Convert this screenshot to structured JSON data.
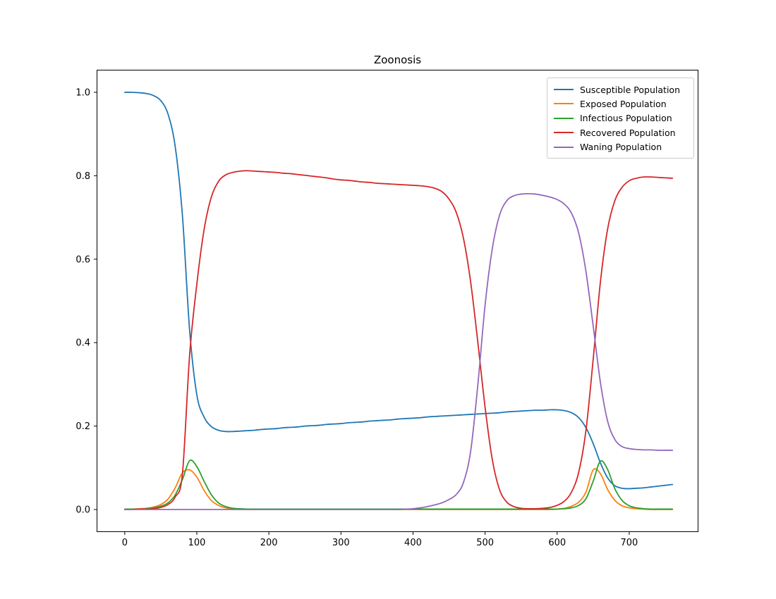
{
  "chart_data": {
    "type": "line",
    "title": "Zoonosis",
    "xlabel": "",
    "ylabel": "",
    "grid": false,
    "legend_position": "upper right",
    "xlim": [
      -39,
      796
    ],
    "ylim": [
      -0.054,
      1.054
    ],
    "x_ticks": [
      0,
      100,
      200,
      300,
      400,
      500,
      600,
      700
    ],
    "x_tick_labels": [
      "0",
      "100",
      "200",
      "300",
      "400",
      "500",
      "600",
      "700"
    ],
    "y_ticks": [
      0.0,
      0.2,
      0.4,
      0.6,
      0.8,
      1.0
    ],
    "y_tick_labels": [
      "0.0",
      "0.2",
      "0.4",
      "0.6",
      "0.8",
      "1.0"
    ],
    "x": [
      0,
      10,
      20,
      30,
      40,
      50,
      60,
      70,
      80,
      90,
      100,
      110,
      120,
      130,
      140,
      150,
      160,
      170,
      180,
      190,
      200,
      210,
      220,
      230,
      240,
      250,
      260,
      270,
      280,
      290,
      300,
      310,
      320,
      330,
      340,
      350,
      360,
      370,
      380,
      390,
      400,
      410,
      420,
      430,
      440,
      450,
      460,
      470,
      480,
      490,
      500,
      510,
      520,
      530,
      540,
      550,
      560,
      570,
      580,
      590,
      600,
      610,
      620,
      630,
      640,
      650,
      660,
      670,
      680,
      690,
      700,
      710,
      720,
      730,
      740,
      750,
      760
    ],
    "series": [
      {
        "name": "Susceptible Population",
        "color": "#1f77b4",
        "values": [
          1.0,
          1.0,
          0.999,
          0.997,
          0.992,
          0.98,
          0.948,
          0.87,
          0.705,
          0.43,
          0.275,
          0.222,
          0.199,
          0.19,
          0.187,
          0.187,
          0.188,
          0.189,
          0.19,
          0.192,
          0.193,
          0.194,
          0.196,
          0.197,
          0.198,
          0.2,
          0.201,
          0.202,
          0.204,
          0.205,
          0.206,
          0.208,
          0.209,
          0.21,
          0.212,
          0.213,
          0.214,
          0.215,
          0.217,
          0.218,
          0.219,
          0.22,
          0.222,
          0.223,
          0.224,
          0.225,
          0.226,
          0.227,
          0.228,
          0.229,
          0.23,
          0.231,
          0.232,
          0.234,
          0.235,
          0.236,
          0.237,
          0.238,
          0.238,
          0.239,
          0.239,
          0.237,
          0.232,
          0.22,
          0.196,
          0.158,
          0.112,
          0.076,
          0.057,
          0.051,
          0.05,
          0.051,
          0.052,
          0.054,
          0.056,
          0.058,
          0.06
        ]
      },
      {
        "name": "Exposed Population",
        "color": "#ff7f0e",
        "values": [
          0.001,
          0.001,
          0.002,
          0.003,
          0.006,
          0.012,
          0.025,
          0.052,
          0.088,
          0.095,
          0.078,
          0.046,
          0.022,
          0.01,
          0.004,
          0.002,
          0.001,
          0.0,
          0.0,
          0.0,
          0.0,
          0.0,
          0.0,
          0.0,
          0.0,
          0.0,
          0.0,
          0.0,
          0.0,
          0.0,
          0.0,
          0.0,
          0.0,
          0.0,
          0.0,
          0.0,
          0.0,
          0.0,
          0.0,
          0.0,
          0.0,
          0.0,
          0.0,
          0.0,
          0.0,
          0.0,
          0.0,
          0.0,
          0.0,
          0.0,
          0.0,
          0.0,
          0.0,
          0.0,
          0.0,
          0.0,
          0.0,
          0.0,
          0.0,
          0.0,
          0.001,
          0.003,
          0.008,
          0.018,
          0.042,
          0.095,
          0.086,
          0.048,
          0.022,
          0.009,
          0.004,
          0.002,
          0.001,
          0.0,
          0.0,
          0.0,
          0.0
        ]
      },
      {
        "name": "Infectious Population",
        "color": "#2ca02c",
        "values": [
          0.001,
          0.001,
          0.001,
          0.002,
          0.004,
          0.008,
          0.016,
          0.035,
          0.072,
          0.117,
          0.103,
          0.068,
          0.036,
          0.016,
          0.007,
          0.003,
          0.002,
          0.001,
          0.001,
          0.001,
          0.001,
          0.001,
          0.001,
          0.001,
          0.001,
          0.001,
          0.001,
          0.001,
          0.001,
          0.001,
          0.001,
          0.001,
          0.001,
          0.001,
          0.001,
          0.001,
          0.001,
          0.001,
          0.001,
          0.001,
          0.001,
          0.001,
          0.001,
          0.001,
          0.001,
          0.001,
          0.001,
          0.001,
          0.001,
          0.001,
          0.001,
          0.001,
          0.001,
          0.001,
          0.001,
          0.001,
          0.001,
          0.001,
          0.001,
          0.001,
          0.001,
          0.002,
          0.004,
          0.01,
          0.026,
          0.068,
          0.116,
          0.096,
          0.05,
          0.022,
          0.009,
          0.004,
          0.002,
          0.001,
          0.001,
          0.001,
          0.001
        ]
      },
      {
        "name": "Recovered Population",
        "color": "#d62728",
        "values": [
          0.0,
          0.0,
          0.001,
          0.001,
          0.002,
          0.005,
          0.012,
          0.03,
          0.085,
          0.37,
          0.54,
          0.67,
          0.748,
          0.786,
          0.802,
          0.808,
          0.811,
          0.812,
          0.811,
          0.81,
          0.809,
          0.808,
          0.806,
          0.805,
          0.803,
          0.801,
          0.799,
          0.797,
          0.795,
          0.792,
          0.79,
          0.789,
          0.787,
          0.785,
          0.784,
          0.782,
          0.781,
          0.78,
          0.779,
          0.778,
          0.777,
          0.776,
          0.774,
          0.77,
          0.762,
          0.744,
          0.712,
          0.65,
          0.545,
          0.4,
          0.245,
          0.12,
          0.048,
          0.018,
          0.007,
          0.003,
          0.002,
          0.002,
          0.003,
          0.005,
          0.01,
          0.02,
          0.042,
          0.09,
          0.19,
          0.36,
          0.545,
          0.672,
          0.74,
          0.772,
          0.788,
          0.794,
          0.797,
          0.797,
          0.796,
          0.795,
          0.794
        ]
      },
      {
        "name": "Waning Population",
        "color": "#9467bd",
        "values": [
          0.0,
          0.0,
          0.0,
          0.0,
          0.0,
          0.0,
          0.0,
          0.0,
          0.0,
          0.0,
          0.0,
          0.0,
          0.0,
          0.0,
          0.0,
          0.0,
          0.0,
          0.0,
          0.0,
          0.0,
          0.0,
          0.0,
          0.0,
          0.0,
          0.0,
          0.0,
          0.0,
          0.0,
          0.0,
          0.0,
          0.0,
          0.0,
          0.0,
          0.0,
          0.0,
          0.0,
          0.0,
          0.0,
          0.0,
          0.001,
          0.002,
          0.004,
          0.007,
          0.011,
          0.016,
          0.024,
          0.036,
          0.065,
          0.14,
          0.3,
          0.49,
          0.625,
          0.705,
          0.74,
          0.752,
          0.756,
          0.757,
          0.756,
          0.753,
          0.749,
          0.743,
          0.732,
          0.71,
          0.662,
          0.57,
          0.44,
          0.305,
          0.212,
          0.168,
          0.151,
          0.146,
          0.144,
          0.143,
          0.143,
          0.142,
          0.142,
          0.142
        ]
      }
    ]
  }
}
